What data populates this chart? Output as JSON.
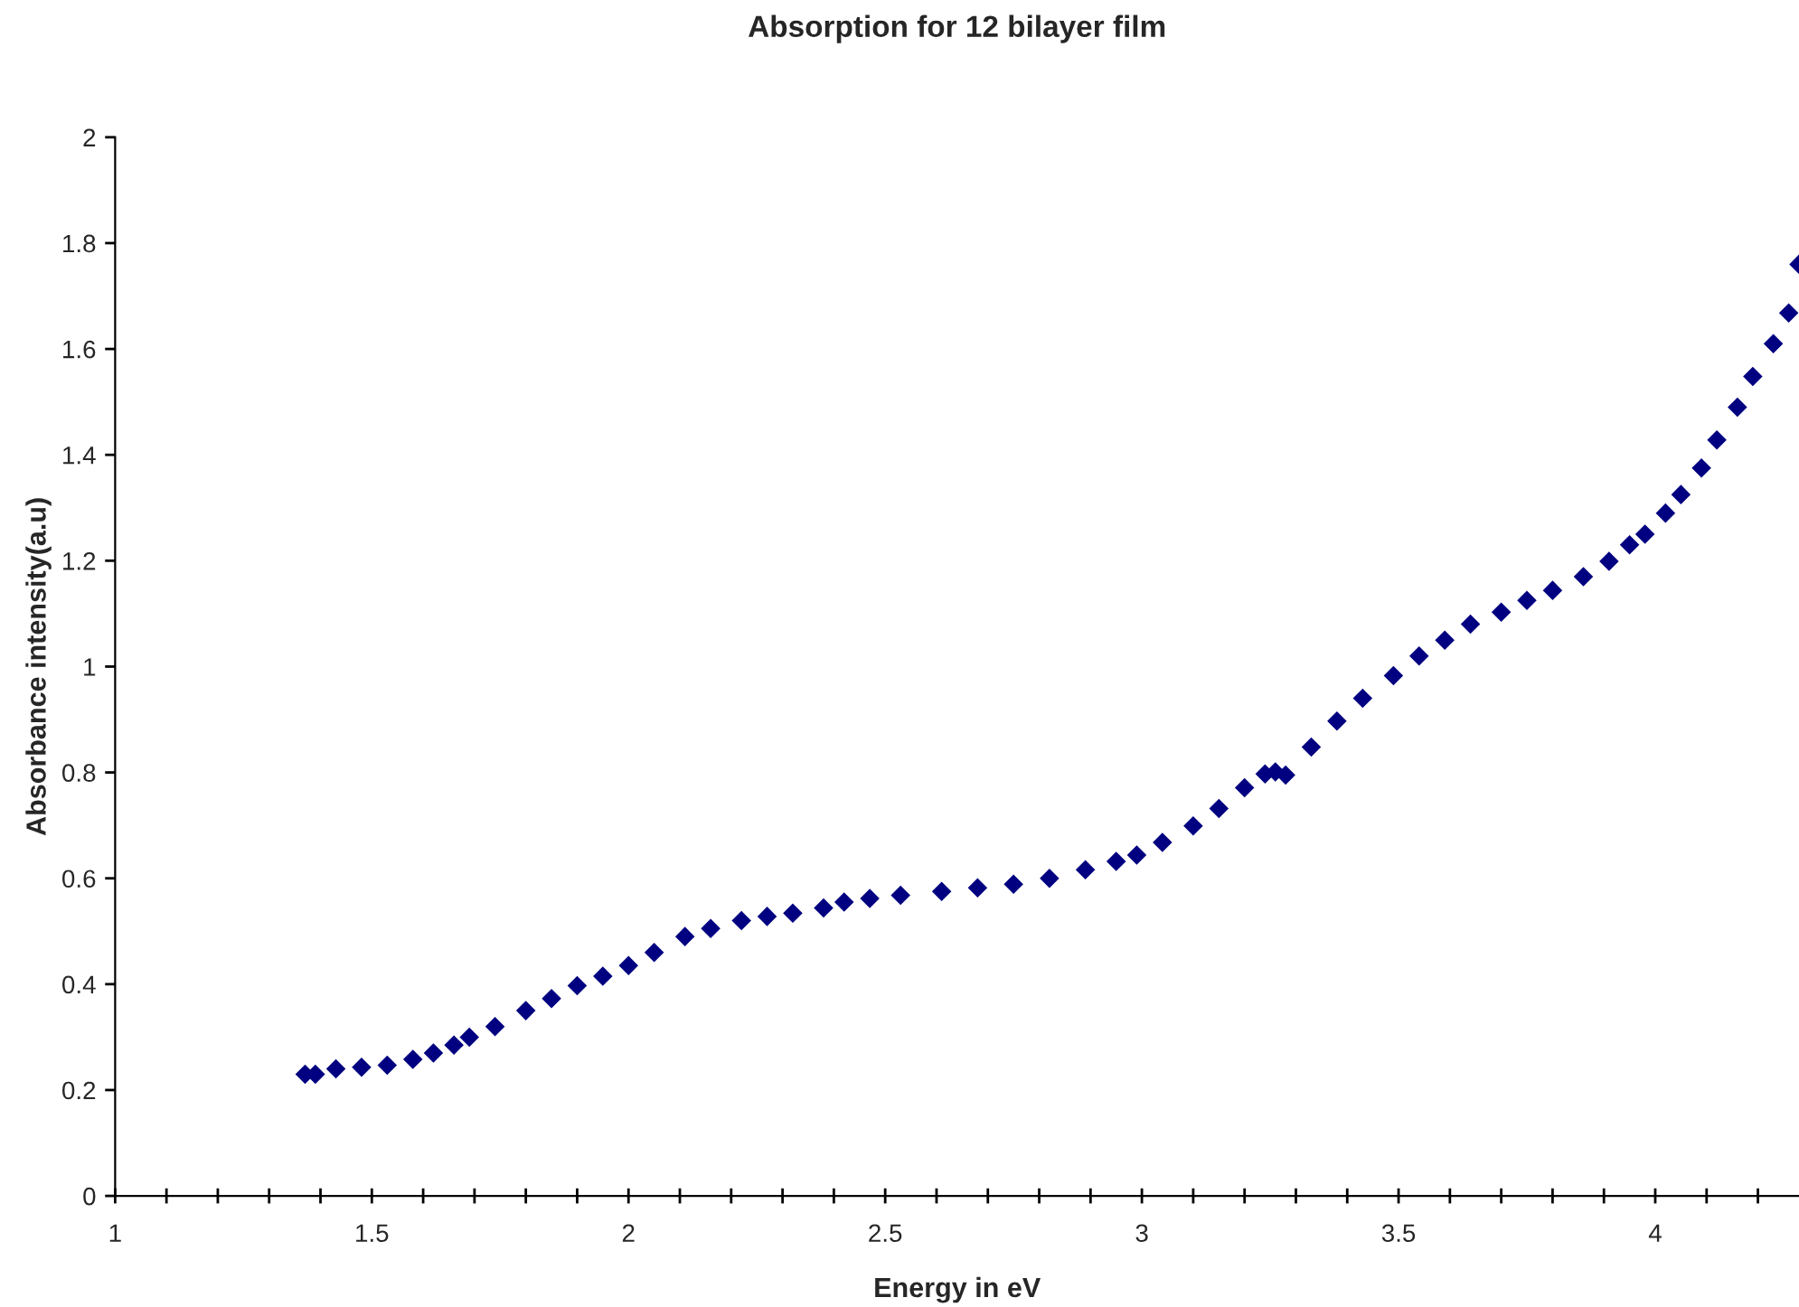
{
  "chart_data": {
    "type": "scatter",
    "title": "Absorption for 12 bilayer film",
    "xlabel": "Energy in eV",
    "ylabel": "Absorbance intensity(a.u)",
    "series": [
      {
        "color": "#000080",
        "x": [
          1.37,
          1.39,
          1.43,
          1.48,
          1.53,
          1.58,
          1.62,
          1.66,
          1.69,
          1.74,
          1.8,
          1.85,
          1.9,
          1.95,
          2.0,
          2.05,
          2.11,
          2.16,
          2.22,
          2.27,
          2.32,
          2.38,
          2.42,
          2.47,
          2.53,
          2.61,
          2.68,
          2.75,
          2.82,
          2.89,
          2.95,
          2.99,
          3.04,
          3.1,
          3.15,
          3.2,
          3.24,
          3.26,
          3.28,
          3.33,
          3.38,
          3.43,
          3.49,
          3.54,
          3.59,
          3.64,
          3.7,
          3.75,
          3.8,
          3.86,
          3.91,
          3.95,
          3.98,
          4.02,
          4.05,
          4.09,
          4.12,
          4.16,
          4.19,
          4.23,
          4.26,
          4.28
        ],
        "values": [
          0.23,
          0.23,
          0.24,
          0.243,
          0.247,
          0.258,
          0.27,
          0.285,
          0.3,
          0.32,
          0.35,
          0.373,
          0.397,
          0.415,
          0.435,
          0.46,
          0.49,
          0.505,
          0.52,
          0.528,
          0.534,
          0.544,
          0.555,
          0.562,
          0.568,
          0.575,
          0.582,
          0.589,
          0.6,
          0.616,
          0.632,
          0.644,
          0.668,
          0.699,
          0.732,
          0.771,
          0.797,
          0.801,
          0.795,
          0.848,
          0.897,
          0.94,
          0.983,
          1.02,
          1.05,
          1.08,
          1.103,
          1.125,
          1.144,
          1.17,
          1.199,
          1.23,
          1.25,
          1.29,
          1.325,
          1.375,
          1.428,
          1.49,
          1.548,
          1.61,
          1.668,
          1.76
        ]
      }
    ],
    "marker": "diamond",
    "grid": false,
    "legend": false,
    "xlim": [
      1,
      4.28
    ],
    "xticks": [
      1,
      {
        "value": 1.1,
        "label": null
      },
      {
        "value": 1.2,
        "label": null
      },
      {
        "value": 1.3,
        "label": null
      },
      {
        "value": 1.4,
        "label": null
      },
      1.5,
      {
        "value": 1.6,
        "label": null
      },
      {
        "value": 1.7,
        "label": null
      },
      {
        "value": 1.8,
        "label": null
      },
      {
        "value": 1.9,
        "label": null
      },
      2,
      {
        "value": 2.1,
        "label": null
      },
      {
        "value": 2.2,
        "label": null
      },
      {
        "value": 2.3,
        "label": null
      },
      {
        "value": 2.4,
        "label": null
      },
      2.5,
      {
        "value": 2.6,
        "label": null
      },
      {
        "value": 2.7,
        "label": null
      },
      {
        "value": 2.8,
        "label": null
      },
      {
        "value": 2.9,
        "label": null
      },
      3,
      {
        "value": 3.1,
        "label": null
      },
      {
        "value": 3.2,
        "label": null
      },
      {
        "value": 3.3,
        "label": null
      },
      {
        "value": 3.4,
        "label": null
      },
      3.5,
      {
        "value": 3.6,
        "label": null
      },
      {
        "value": 3.7,
        "label": null
      },
      {
        "value": 3.8,
        "label": null
      },
      {
        "value": 3.9,
        "label": null
      },
      4,
      {
        "value": 4.1,
        "label": null
      },
      {
        "value": 4.2,
        "label": null
      }
    ],
    "ylim": [
      0,
      2
    ],
    "yticks": [
      0,
      0.2,
      0.4,
      0.6,
      0.8,
      1,
      1.2,
      1.4,
      1.6,
      1.8,
      2
    ]
  }
}
